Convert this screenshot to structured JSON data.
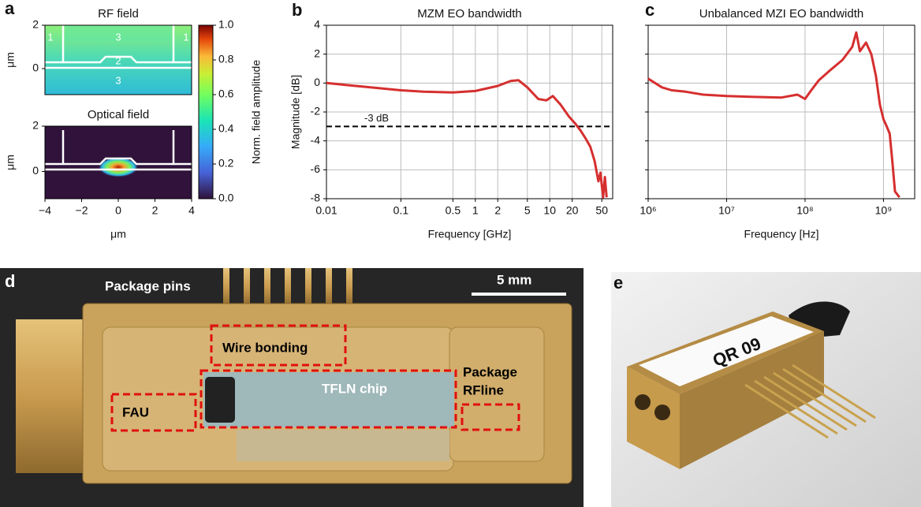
{
  "panel_labels": [
    "a",
    "b",
    "c",
    "d",
    "e"
  ],
  "chart_data": [
    {
      "type": "heatmap",
      "title": "RF field",
      "ylabel": "μm",
      "xlim": [
        -4,
        4
      ],
      "ylim": [
        -1.2,
        2
      ],
      "yticks": [
        0,
        2
      ],
      "region_labels": [
        "1",
        "3",
        "1",
        "2",
        "3"
      ]
    },
    {
      "type": "heatmap",
      "title": "Optical field",
      "xlabel": "μm",
      "ylabel": "μm",
      "xlim": [
        -4,
        4
      ],
      "ylim": [
        -1.2,
        2
      ],
      "yticks": [
        0,
        2
      ],
      "xticks": [
        {
          "value": -4,
          "label": "−4"
        },
        {
          "value": -2,
          "label": "−2"
        },
        0,
        2,
        4
      ]
    },
    {
      "type": "colorbar",
      "label": "Norm. field amplitude",
      "ylim": [
        0,
        1
      ],
      "yticks": [
        {
          "value": 0,
          "label": "0.0"
        },
        0.2,
        0.4,
        0.6,
        0.8,
        {
          "value": 1,
          "label": "1.0"
        }
      ]
    },
    {
      "type": "line",
      "title": "MZM EO bandwidth",
      "xlabel": "Frequency [GHz]",
      "ylabel": "Magnitude [dB]",
      "log_x": true,
      "grid": true,
      "show_ytick_labels": true,
      "xlim": [
        0.01,
        70
      ],
      "xticks": [
        0.01,
        0.1,
        0.5,
        1,
        2,
        5,
        10,
        20,
        50
      ],
      "ylim": [
        -8,
        4
      ],
      "yticks": [
        -8,
        -6,
        -4,
        -2,
        0,
        2,
        4
      ],
      "ref_line": {
        "value": -3,
        "label": "-3 dB"
      },
      "series": [
        {
          "color": "#d62f2f",
          "x": [
            0.01,
            0.02,
            0.05,
            0.1,
            0.2,
            0.5,
            1,
            2,
            3,
            3.8,
            5,
            7,
            9,
            11,
            14,
            18,
            22,
            26,
            30,
            35,
            40,
            45,
            48,
            52,
            55,
            58
          ],
          "values": [
            0,
            -0.15,
            -0.35,
            -0.5,
            -0.6,
            -0.65,
            -0.55,
            -0.2,
            0.15,
            0.2,
            -0.3,
            -1.1,
            -1.2,
            -0.9,
            -1.5,
            -2.3,
            -2.8,
            -3.3,
            -3.8,
            -4.4,
            -5.4,
            -6.8,
            -6.2,
            -7.9,
            -6.5,
            -7.9
          ]
        }
      ]
    },
    {
      "type": "line",
      "title": "Unbalanced MZI EO bandwidth",
      "xlabel": "Frequency [Hz]",
      "log_x": true,
      "grid": true,
      "show_ytick_labels": false,
      "xlim": [
        1000000,
        2500000000
      ],
      "xticks": [
        {
          "value": 1000000,
          "label": "10⁶"
        },
        {
          "value": 10000000,
          "label": "10⁷"
        },
        {
          "value": 100000000,
          "label": "10⁸"
        },
        {
          "value": 1000000000,
          "label": "10⁹"
        }
      ],
      "ylim": [
        -8,
        4
      ],
      "yticks": [
        -8,
        -6,
        -4,
        -2,
        0,
        2,
        4
      ],
      "series": [
        {
          "color": "#d62f2f",
          "x": [
            1000000,
            1500000,
            2000000,
            3000000,
            5000000,
            10000000,
            20000000,
            50000000,
            80000000,
            100000000,
            120000000,
            150000000,
            200000000,
            300000000,
            400000000,
            450000000,
            500000000,
            600000000,
            700000000,
            800000000,
            900000000,
            1000000000,
            1100000000,
            1200000000,
            1300000000,
            1400000000,
            1600000000
          ],
          "values": [
            0.3,
            -0.3,
            -0.5,
            -0.6,
            -0.8,
            -0.9,
            -0.95,
            -1.0,
            -0.8,
            -1.1,
            -0.5,
            0.2,
            0.8,
            1.6,
            2.5,
            3.5,
            2.2,
            2.8,
            2.0,
            0.5,
            -1.5,
            -2.5,
            -3,
            -3.5,
            -5.5,
            -7.5,
            -7.9
          ]
        }
      ]
    }
  ],
  "photos": {
    "d": {
      "pins": "Package pins",
      "scale": "5 mm",
      "wire": "Wire bonding",
      "chip": "TFLN chip",
      "rfline": [
        "Package",
        "RFline"
      ],
      "fau": "FAU"
    },
    "e": {
      "tag": "QR 09"
    }
  }
}
